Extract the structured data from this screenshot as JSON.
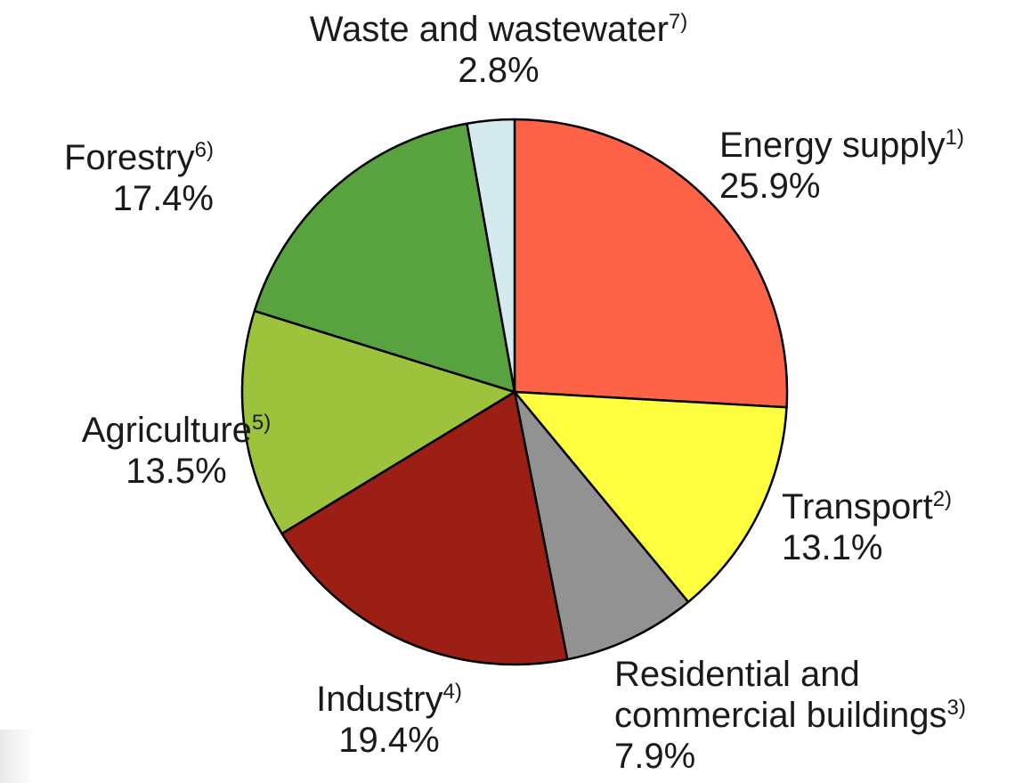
{
  "chart_data": {
    "type": "pie",
    "start_angle_deg": 0,
    "direction": "clockwise",
    "slices": [
      {
        "label": "Energy supply",
        "footnote": "1)",
        "value": 25.9,
        "value_text": "25.9%",
        "color": "#ff6347"
      },
      {
        "label": "Transport",
        "footnote": "2)",
        "value": 13.1,
        "value_text": "13.1%",
        "color": "#ffff40"
      },
      {
        "label": "Residential and commercial buildings",
        "label_lines": [
          "Residential and",
          "commercial buildings"
        ],
        "footnote": "3)",
        "value": 7.9,
        "value_text": "7.9%",
        "color": "#929292"
      },
      {
        "label": "Industry",
        "footnote": "4)",
        "value": 19.4,
        "value_text": "19.4%",
        "color": "#9b1f15"
      },
      {
        "label": "Agriculture",
        "footnote": "5)",
        "value": 13.5,
        "value_text": "13.5%",
        "color": "#9cc33b"
      },
      {
        "label": "Forestry",
        "footnote": "6)",
        "value": 17.4,
        "value_text": "17.4%",
        "color": "#58a33f"
      },
      {
        "label": "Waste and wastewater",
        "footnote": "7)",
        "value": 2.8,
        "value_text": "2.8%",
        "color": "#d5eaee"
      }
    ]
  }
}
